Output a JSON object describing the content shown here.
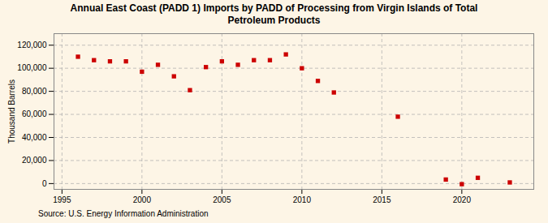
{
  "chart_data": {
    "type": "scatter",
    "title": "Annual East Coast (PADD 1) Imports by PADD of Processing from Virgin Islands of Total\nPetroleum Products",
    "ylabel": "Thousand Barrels",
    "source": "Source: U.S. Energy Information Administration",
    "x": [
      1996,
      1997,
      1998,
      1999,
      2000,
      2001,
      2002,
      2003,
      2004,
      2005,
      2006,
      2007,
      2008,
      2009,
      2010,
      2011,
      2012,
      2016,
      2019,
      2020,
      2021,
      2023
    ],
    "values": [
      110000,
      107000,
      106000,
      106000,
      97000,
      103000,
      93000,
      81000,
      101000,
      106000,
      103000,
      107000,
      107000,
      112000,
      100000,
      89000,
      79000,
      58000,
      3500,
      -500,
      5000,
      1000
    ],
    "color": "#cc0000",
    "marker": "square",
    "xlim": [
      1994.5,
      2024.5
    ],
    "ylim": [
      -5000,
      130000
    ],
    "xticks": [
      1995,
      2000,
      2005,
      2010,
      2015,
      2020
    ],
    "yticks": [
      0,
      {
        "value": 20000,
        "label": "20,000"
      },
      {
        "value": 40000,
        "label": "40,000"
      },
      {
        "value": 60000,
        "label": "60,000"
      },
      {
        "value": 80000,
        "label": "80,000"
      },
      {
        "value": 100000,
        "label": "100,000"
      },
      {
        "value": 120000,
        "label": "120,000"
      }
    ],
    "grid": true
  }
}
